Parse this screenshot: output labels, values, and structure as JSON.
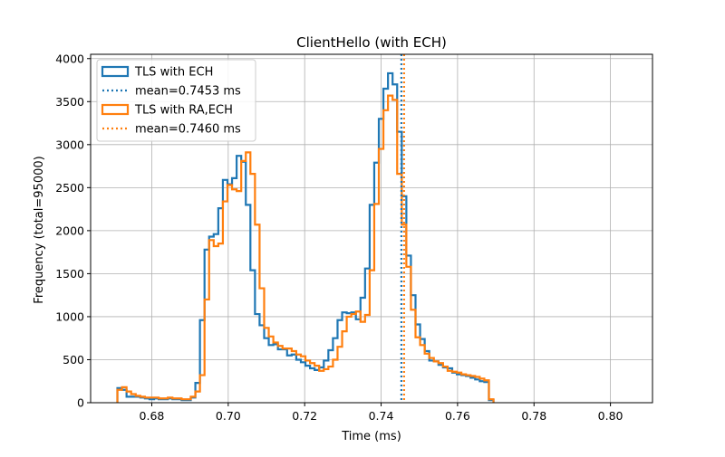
{
  "chart_data": {
    "type": "histogram",
    "title": "ClientHello (with ECH)",
    "xlabel": "Time (ms)",
    "ylabel": "Frequency (total=95000)",
    "xlim": [
      0.664,
      0.811
    ],
    "ylim": [
      0,
      4050
    ],
    "xticks": [
      0.68,
      0.7,
      0.72,
      0.74,
      0.76,
      0.78,
      0.8
    ],
    "xtick_labels": [
      "0.68",
      "0.70",
      "0.72",
      "0.74",
      "0.76",
      "0.78",
      "0.80"
    ],
    "yticks": [
      0,
      500,
      1000,
      1500,
      2000,
      2500,
      3000,
      3500,
      4000
    ],
    "ytick_labels": [
      "0",
      "500",
      "1000",
      "1500",
      "2000",
      "2500",
      "3000",
      "3500",
      "4000"
    ],
    "grid": true,
    "legend_position": "top-left",
    "bin_start": 0.671,
    "bin_width": 0.0012,
    "series": [
      {
        "name": "TLS with ECH",
        "color": "#1f77b4",
        "values": [
          170,
          150,
          70,
          70,
          70,
          60,
          50,
          40,
          50,
          40,
          40,
          50,
          40,
          40,
          30,
          30,
          60,
          230,
          960,
          1780,
          1930,
          1960,
          2260,
          2590,
          2540,
          2610,
          2870,
          2800,
          2300,
          1540,
          1030,
          900,
          750,
          670,
          680,
          620,
          620,
          550,
          560,
          500,
          470,
          430,
          400,
          380,
          410,
          490,
          610,
          750,
          960,
          1050,
          1040,
          1050,
          970,
          1220,
          1560,
          2300,
          2790,
          3300,
          3650,
          3830,
          3700,
          3150,
          2400,
          1710,
          1250,
          910,
          740,
          600,
          490,
          480,
          440,
          410,
          400,
          350,
          330,
          320,
          310,
          290,
          270,
          250,
          240,
          30
        ],
        "mean_label": "mean=0.7453 ms",
        "mean": 0.7453
      },
      {
        "name": "TLS with RA,ECH",
        "color": "#ff7f0e",
        "values": [
          150,
          180,
          130,
          100,
          80,
          70,
          60,
          60,
          60,
          50,
          50,
          60,
          50,
          50,
          40,
          40,
          70,
          130,
          320,
          1200,
          1890,
          1820,
          1850,
          2340,
          2530,
          2480,
          2460,
          2810,
          2910,
          2660,
          2070,
          1330,
          870,
          770,
          700,
          660,
          630,
          630,
          600,
          560,
          540,
          490,
          460,
          430,
          370,
          390,
          420,
          500,
          650,
          830,
          1000,
          1030,
          1060,
          940,
          1020,
          1540,
          2310,
          2950,
          3400,
          3570,
          3520,
          2660,
          2070,
          1580,
          1080,
          760,
          670,
          570,
          520,
          480,
          460,
          420,
          370,
          360,
          350,
          330,
          320,
          310,
          300,
          280,
          260,
          40
        ],
        "mean_label": "mean=0.7460 ms",
        "mean": 0.746
      }
    ]
  }
}
